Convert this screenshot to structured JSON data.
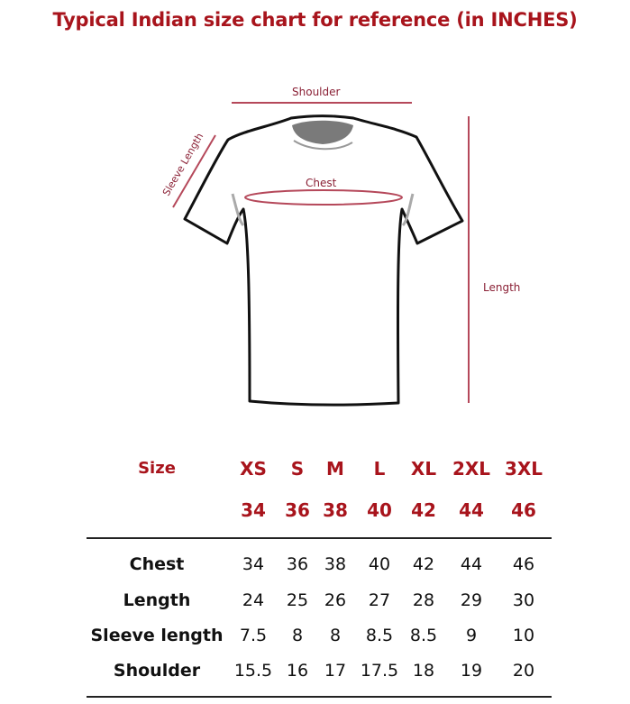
{
  "title": "Typical Indian size chart for reference (in INCHES)",
  "diagram": {
    "shoulder_label": "Shoulder",
    "chest_label": "Chest",
    "sleeve_label": "Sleeve Length",
    "length_label": "Length",
    "accent_color": "#a8141c",
    "measure_line_color": "#b5485a"
  },
  "table": {
    "size_header": "Size",
    "sizes": [
      "XS",
      "S",
      "M",
      "L",
      "XL",
      "2XL",
      "3XL"
    ],
    "size_numbers": [
      "34",
      "36",
      "38",
      "40",
      "42",
      "44",
      "46"
    ],
    "rows": [
      {
        "label": "Chest",
        "values": [
          "34",
          "36",
          "38",
          "40",
          "42",
          "44",
          "46"
        ]
      },
      {
        "label": "Length",
        "values": [
          "24",
          "25",
          "26",
          "27",
          "28",
          "29",
          "30"
        ]
      },
      {
        "label": "Sleeve length",
        "values": [
          "7.5",
          "8",
          "8",
          "8.5",
          "8.5",
          "9",
          "10"
        ]
      },
      {
        "label": "Shoulder",
        "values": [
          "15.5",
          "16",
          "17",
          "17.5",
          "18",
          "19",
          "20"
        ]
      }
    ]
  }
}
